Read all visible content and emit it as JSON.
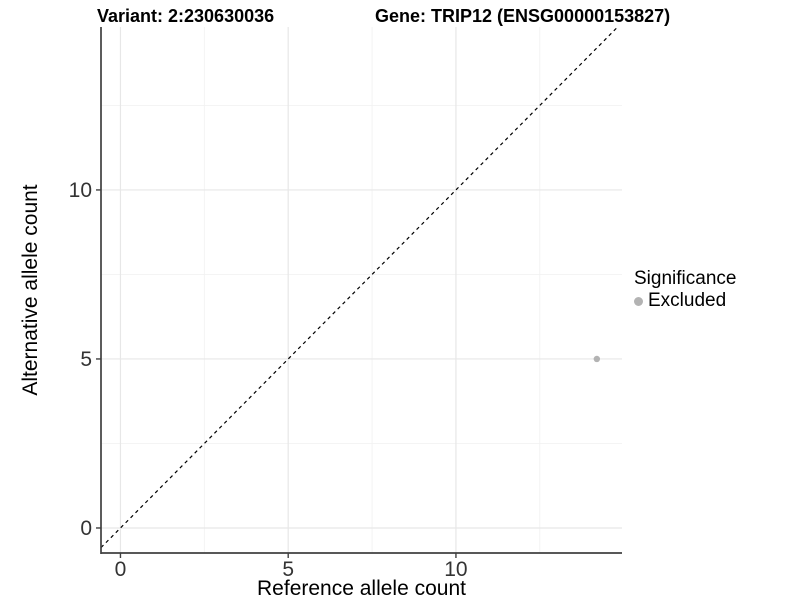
{
  "chart_data": {
    "type": "scatter",
    "title_variant": "Variant: 2:230630036",
    "title_gene": "Gene: TRIP12 (ENSG00000153827)",
    "xlabel": "Reference allele count",
    "ylabel": "Alternative allele count",
    "xticks": [
      0,
      5,
      10
    ],
    "yticks": [
      0,
      5,
      10
    ],
    "minor_gridlines": [
      2.5,
      7.5,
      12.5
    ],
    "xlim": [
      -0.58,
      14.95
    ],
    "ylim": [
      -0.74,
      14.82
    ],
    "grid": "major and minor gridlines on, white panel background",
    "points": [
      {
        "x": 14.2,
        "y": 5,
        "significance": "Excluded"
      }
    ],
    "reference_line": {
      "type": "identity y=x",
      "style": "dashed"
    },
    "legend": {
      "title": "Significance",
      "position": "right",
      "items": [
        {
          "label": "Excluded",
          "color": "#b3b3b3"
        }
      ]
    },
    "colors": {
      "point": "#b3b3b3",
      "grid_major": "#e7e7e7",
      "grid_minor": "#f2f2f2",
      "axis": "#404040",
      "tick_text": "#333333",
      "reference_line": "#000000"
    }
  }
}
